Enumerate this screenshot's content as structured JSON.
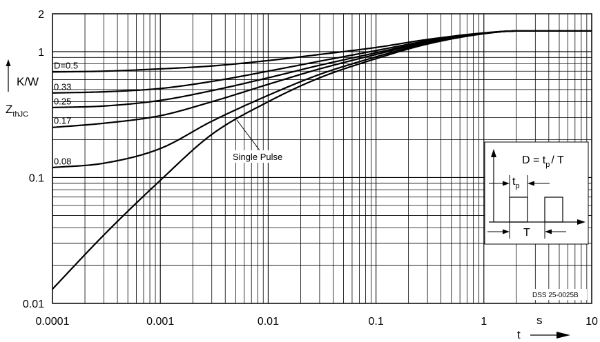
{
  "chart_data": {
    "type": "line",
    "x_scale": "log",
    "y_scale": "log",
    "xlim": [
      0.0001,
      10
    ],
    "ylim": [
      0.01,
      2
    ],
    "grid": true,
    "x_ticks": [
      "0.0001",
      "0.001",
      "0.01",
      "0.1",
      "1",
      "10"
    ],
    "y_ticks": [
      "2",
      "1",
      "0.1",
      "0.01"
    ],
    "x_unit": "s",
    "x_symbol": "t",
    "y_unit": "K/W",
    "y_symbol_main": "Z",
    "y_symbol_sub": "thJC",
    "legend_note": "D = t",
    "legend_note_sub": "p",
    "legend_note_tail": "/ T",
    "inset_tp_main": "t",
    "inset_tp_sub": "p",
    "inset_T": "T",
    "doc_code": "DSS 25-0025B",
    "series": [
      {
        "name": "D=0.5",
        "x": [
          0.0001,
          0.0003,
          0.001,
          0.003,
          0.01,
          0.03,
          0.1,
          0.3,
          1,
          2,
          10
        ],
        "y": [
          0.69,
          0.7,
          0.73,
          0.77,
          0.85,
          0.95,
          1.08,
          1.25,
          1.41,
          1.46,
          1.46
        ]
      },
      {
        "name": "0.33",
        "x": [
          0.0001,
          0.0003,
          0.001,
          0.003,
          0.01,
          0.03,
          0.1,
          0.3,
          1,
          2,
          10
        ],
        "y": [
          0.47,
          0.48,
          0.51,
          0.58,
          0.7,
          0.84,
          1.02,
          1.22,
          1.4,
          1.46,
          1.46
        ]
      },
      {
        "name": "0.25",
        "x": [
          0.0001,
          0.0003,
          0.001,
          0.003,
          0.01,
          0.03,
          0.1,
          0.3,
          1,
          2,
          10
        ],
        "y": [
          0.36,
          0.37,
          0.41,
          0.49,
          0.62,
          0.78,
          0.98,
          1.2,
          1.4,
          1.46,
          1.46
        ]
      },
      {
        "name": "0.17",
        "x": [
          0.0001,
          0.0003,
          0.001,
          0.003,
          0.01,
          0.03,
          0.1,
          0.3,
          1,
          2,
          10
        ],
        "y": [
          0.25,
          0.27,
          0.31,
          0.4,
          0.55,
          0.73,
          0.95,
          1.19,
          1.4,
          1.46,
          1.46
        ]
      },
      {
        "name": "0.08",
        "x": [
          0.0001,
          0.0003,
          0.001,
          0.003,
          0.01,
          0.03,
          0.1,
          0.3,
          1,
          2,
          10
        ],
        "y": [
          0.12,
          0.13,
          0.17,
          0.28,
          0.45,
          0.66,
          0.91,
          1.17,
          1.39,
          1.46,
          1.46
        ]
      },
      {
        "name": "Single Pulse",
        "x": [
          0.0001,
          0.0003,
          0.001,
          0.003,
          0.01,
          0.03,
          0.1,
          0.3,
          1,
          2,
          10
        ],
        "y": [
          0.013,
          0.035,
          0.095,
          0.22,
          0.4,
          0.62,
          0.88,
          1.15,
          1.39,
          1.46,
          1.46
        ]
      }
    ]
  }
}
